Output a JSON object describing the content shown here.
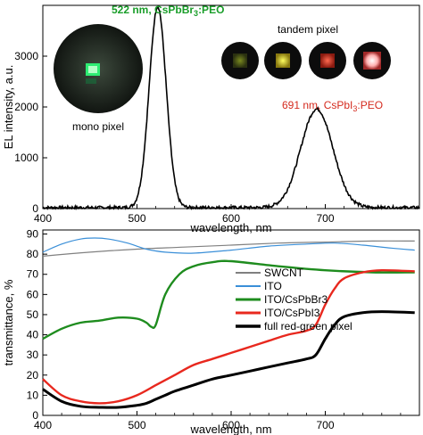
{
  "chart_data": [
    {
      "type": "line",
      "xlabel": "wavelength, nm",
      "ylabel": "EL intensity, a.u.",
      "xlim": [
        400,
        800
      ],
      "ylim": [
        0,
        4000
      ],
      "x_ticks": [
        400,
        500,
        600,
        700
      ],
      "y_ticks": [
        0,
        1000,
        2000,
        3000
      ],
      "grid": false,
      "series": [
        {
          "color": "#000000",
          "peaks": [
            {
              "center": 522,
              "amplitude": 3960,
              "width": 9
            },
            {
              "center": 691,
              "amplitude": 1940,
              "width": 17
            }
          ]
        }
      ],
      "annotations": {
        "green_peak": {
          "prefix": "522 nm, CsPbBr",
          "sub": "3",
          "suffix": ":PEO",
          "color": "#1a9e2a"
        },
        "red_peak": {
          "prefix": "691 nm, CsPbI",
          "sub": "3",
          "suffix": ":PEO",
          "color": "#d42a1e"
        },
        "mono_label": "mono pixel",
        "tandem_label": "tandem pixel"
      },
      "insets": {
        "mono_pixel_icon": "green-emitting-pixel-photo",
        "tandem_pixel_icons": [
          "dim-green-pixel",
          "yellow-pixel",
          "red-pixel",
          "pink-white-pixel"
        ]
      }
    },
    {
      "type": "line",
      "xlabel": "wavelength, nm",
      "ylabel": "transmittance, %",
      "xlim": [
        400,
        800
      ],
      "ylim": [
        0,
        92
      ],
      "x_ticks": [
        400,
        500,
        600,
        700
      ],
      "y_ticks": [
        0,
        10,
        20,
        30,
        40,
        50,
        60,
        70,
        80,
        90
      ],
      "grid": false,
      "legend_position": "center-right",
      "series": [
        {
          "name": "SWCNT",
          "color": "#808080",
          "x": [
            400,
            450,
            500,
            550,
            600,
            650,
            700,
            750,
            795
          ],
          "y": [
            79,
            81,
            82.5,
            83.5,
            84.5,
            85.5,
            86,
            86.5,
            86.5
          ]
        },
        {
          "name": "ITO",
          "color": "#3a8fd8",
          "x": [
            400,
            420,
            440,
            455,
            470,
            490,
            510,
            530,
            560,
            600,
            640,
            680,
            710,
            740,
            770,
            795
          ],
          "y": [
            81,
            85,
            87.5,
            88,
            87.5,
            85.5,
            82.5,
            81,
            80.5,
            82,
            84,
            85,
            85.5,
            84.5,
            83,
            82
          ]
        },
        {
          "name": "ITO/CsPbBr3",
          "color": "#1e8c1e",
          "x": [
            400,
            420,
            440,
            460,
            480,
            500,
            510,
            515,
            520,
            530,
            545,
            560,
            580,
            600,
            650,
            700,
            750,
            795
          ],
          "y": [
            38,
            43,
            46,
            47,
            48.5,
            48,
            46,
            44,
            45,
            60,
            70,
            74,
            76,
            76.5,
            74,
            72,
            71,
            71
          ]
        },
        {
          "name": "ITO/CsPbI3",
          "color": "#e8281e",
          "x": [
            400,
            420,
            440,
            460,
            480,
            500,
            520,
            540,
            560,
            580,
            600,
            620,
            640,
            660,
            680,
            690,
            700,
            710,
            720,
            740,
            760,
            795
          ],
          "y": [
            18,
            10,
            7,
            6,
            7,
            10,
            15,
            20,
            25,
            28,
            31,
            34,
            37,
            40,
            42,
            45,
            55,
            63,
            68,
            71,
            72,
            71.5
          ]
        },
        {
          "name": "full red-green pixel",
          "color": "#000000",
          "x": [
            400,
            420,
            440,
            460,
            480,
            500,
            510,
            520,
            530,
            540,
            560,
            580,
            600,
            620,
            640,
            660,
            680,
            690,
            700,
            710,
            720,
            740,
            760,
            795
          ],
          "y": [
            13,
            7,
            4.5,
            4,
            4,
            5,
            6,
            8,
            10,
            12,
            15,
            18,
            20,
            22,
            24,
            26,
            28,
            30,
            38,
            45,
            49,
            51,
            51.5,
            51
          ]
        }
      ]
    }
  ]
}
